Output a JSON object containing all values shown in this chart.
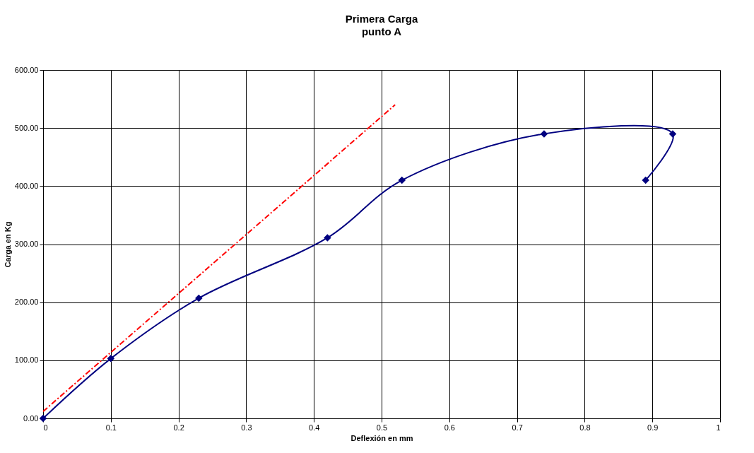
{
  "chart_data": {
    "type": "line",
    "title": "Primera Carga",
    "subtitle": "punto A",
    "xlabel": "Deflexión en mm",
    "ylabel": "Carga en Kg",
    "xlim": [
      0,
      1
    ],
    "xticks": [
      0,
      0.1,
      0.2,
      0.3,
      0.4,
      0.5,
      0.6,
      0.7,
      0.8,
      0.9,
      1
    ],
    "ylim": [
      0,
      600
    ],
    "yticks": [
      {
        "value": 0,
        "label": "0.00"
      },
      {
        "value": 100,
        "label": "100.00"
      },
      {
        "value": 200,
        "label": "200.00"
      },
      {
        "value": 300,
        "label": "300.00"
      },
      {
        "value": 400,
        "label": "400.00"
      },
      {
        "value": 500,
        "label": "500.00"
      },
      {
        "value": 600,
        "label": "600.00"
      }
    ],
    "grid": true,
    "legend": false,
    "series": [
      {
        "type": "line",
        "color": "#000080",
        "marker": "diamond",
        "line_style": "solid",
        "x": [
          0,
          0.1,
          0.23,
          0.42,
          0.53,
          0.74,
          0.93,
          0.89
        ],
        "values": [
          0,
          103,
          207,
          311,
          410,
          490,
          490,
          410
        ]
      },
      {
        "type": "line",
        "color": "#ff0000",
        "marker": "none",
        "line_style": "dashed",
        "x": [
          0,
          0.52
        ],
        "values": [
          12,
          540
        ]
      }
    ]
  }
}
